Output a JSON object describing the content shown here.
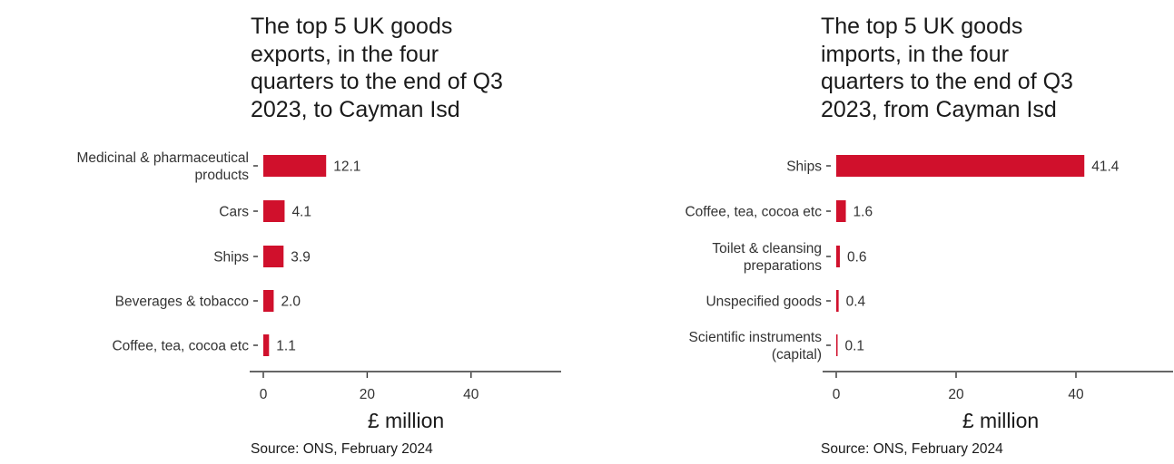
{
  "colors": {
    "bar": "#d0102c",
    "axis": "#333333",
    "text": "#1a1a1a"
  },
  "panels": {
    "exports": {
      "title": "The top 5 UK goods\nexports, in the four\nquarters to the end of Q3\n2023, to Cayman Isd",
      "source": "Source: ONS, February 2024"
    },
    "imports": {
      "title": "The top 5 UK goods\nimports, in the four\nquarters to the end of Q3\n2023, from Cayman Isd",
      "source": "Source: ONS, February 2024"
    }
  },
  "chart_data": [
    {
      "type": "bar",
      "orientation": "horizontal",
      "title": "The top 5 UK goods exports, in the four quarters to the end of Q3 2023, to Cayman Isd",
      "categories": [
        "Medicinal & pharmaceutical\nproducts",
        "Cars",
        "Ships",
        "Beverages & tobacco",
        "Coffee, tea, cocoa etc"
      ],
      "values": [
        12.1,
        4.1,
        3.9,
        2.0,
        1.1
      ],
      "value_labels": [
        "12.1",
        "4.1",
        "3.9",
        "2.0",
        "1.1"
      ],
      "xlabel": "£ million",
      "ylabel": "",
      "xlim": [
        0,
        55
      ],
      "xticks": [
        0,
        20,
        40
      ],
      "grid": false
    },
    {
      "type": "bar",
      "orientation": "horizontal",
      "title": "The top 5 UK goods imports, in the four quarters to the end of Q3 2023, from Cayman Isd",
      "categories": [
        "Ships",
        "Coffee, tea, cocoa etc",
        "Toilet & cleansing\npreparations",
        "Unspecified goods",
        "Scientific instruments\n(capital)"
      ],
      "values": [
        41.4,
        1.6,
        0.6,
        0.4,
        0.1
      ],
      "value_labels": [
        "41.4",
        "1.6",
        "0.6",
        "0.4",
        "0.1"
      ],
      "xlabel": "£ million",
      "ylabel": "",
      "xlim": [
        0,
        55
      ],
      "xticks": [
        0,
        20,
        40
      ],
      "grid": false
    }
  ]
}
